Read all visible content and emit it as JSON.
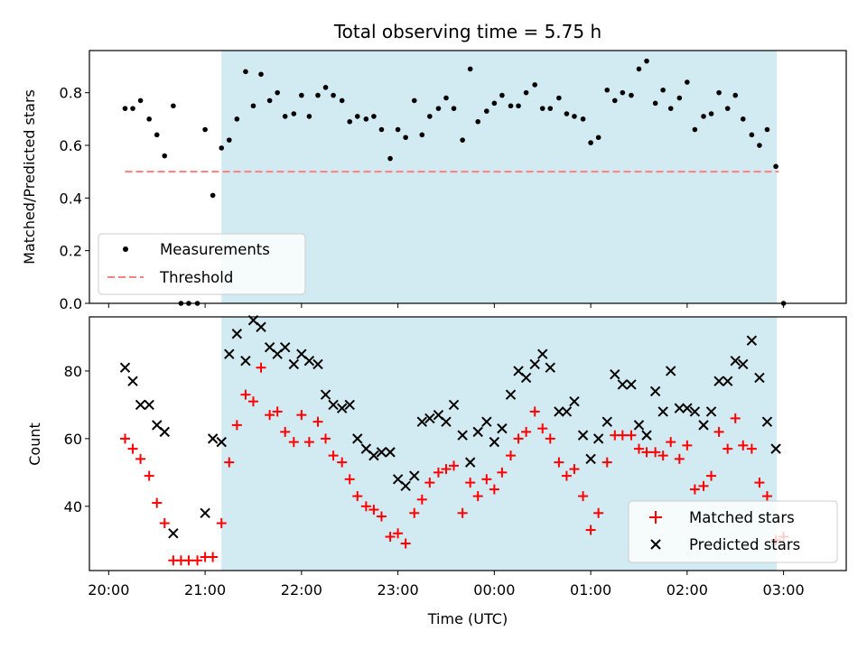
{
  "chart_data": [
    {
      "type": "scatter",
      "title": "Total observing time = 5.75 h",
      "ylabel": "Matched/Predicted stars",
      "xlabel": "",
      "ylim": [
        0,
        0.96
      ],
      "yticks": [
        "0.0",
        "0.2",
        "0.4",
        "0.6",
        "0.8"
      ],
      "xlim_hours": [
        19.8,
        27.65
      ],
      "highlight_hours": [
        21.17,
        26.93
      ],
      "highlight_color": "#add8e6",
      "legend": {
        "placement": "lower-left",
        "entries": [
          "Measurements",
          "Threshold"
        ]
      },
      "threshold": {
        "name": "Threshold",
        "value": 0.5,
        "x_hours": [
          20.17,
          26.95
        ],
        "color": "#ff7f7f"
      },
      "series": [
        {
          "name": "Measurements",
          "marker": "dot",
          "color": "#000000",
          "x_hours": [
            20.17,
            20.25,
            20.33,
            20.42,
            20.5,
            20.58,
            20.67,
            20.75,
            20.83,
            20.92,
            21.0,
            21.08,
            21.17,
            21.25,
            21.33,
            21.42,
            21.5,
            21.58,
            21.67,
            21.75,
            21.83,
            21.92,
            22.0,
            22.08,
            22.17,
            22.25,
            22.33,
            22.42,
            22.5,
            22.58,
            22.67,
            22.75,
            22.83,
            22.92,
            23.0,
            23.08,
            23.17,
            23.25,
            23.33,
            23.42,
            23.5,
            23.58,
            23.67,
            23.75,
            23.83,
            23.92,
            24.0,
            24.08,
            24.17,
            24.25,
            24.33,
            24.42,
            24.5,
            24.58,
            24.67,
            24.75,
            24.83,
            24.92,
            25.0,
            25.08,
            25.17,
            25.25,
            25.33,
            25.42,
            25.5,
            25.58,
            25.67,
            25.75,
            25.83,
            25.92,
            26.0,
            26.08,
            26.17,
            26.25,
            26.33,
            26.42,
            26.5,
            26.58,
            26.67,
            26.75,
            26.83,
            26.92,
            27.0
          ],
          "y": [
            0.74,
            0.74,
            0.77,
            0.7,
            0.64,
            0.56,
            0.75,
            0.0,
            0.0,
            0.0,
            0.66,
            0.41,
            0.59,
            0.62,
            0.7,
            0.88,
            0.75,
            0.87,
            0.77,
            0.8,
            0.71,
            0.72,
            0.79,
            0.71,
            0.79,
            0.82,
            0.79,
            0.77,
            0.69,
            0.71,
            0.7,
            0.71,
            0.66,
            0.55,
            0.66,
            0.63,
            0.77,
            0.64,
            0.71,
            0.74,
            0.78,
            0.74,
            0.62,
            0.89,
            0.69,
            0.73,
            0.76,
            0.79,
            0.75,
            0.75,
            0.8,
            0.83,
            0.74,
            0.74,
            0.78,
            0.72,
            0.71,
            0.7,
            0.61,
            0.63,
            0.81,
            0.77,
            0.8,
            0.79,
            0.89,
            0.92,
            0.76,
            0.81,
            0.74,
            0.78,
            0.84,
            0.66,
            0.71,
            0.72,
            0.8,
            0.74,
            0.79,
            0.7,
            0.64,
            0.6,
            0.66,
            0.52,
            0.0
          ]
        }
      ]
    },
    {
      "type": "scatter",
      "title": "",
      "ylabel": "Count",
      "xlabel": "Time (UTC)",
      "ylim": [
        21,
        96
      ],
      "yticks": [
        "40",
        "60",
        "80"
      ],
      "xticks": [
        "20:00",
        "21:00",
        "22:00",
        "23:00",
        "00:00",
        "01:00",
        "02:00",
        "03:00"
      ],
      "xlim_hours": [
        19.8,
        27.65
      ],
      "highlight_hours": [
        21.17,
        26.93
      ],
      "highlight_color": "#add8e6",
      "legend": {
        "placement": "lower-right",
        "entries": [
          "Matched stars",
          "Predicted stars"
        ]
      },
      "series": [
        {
          "name": "Matched stars",
          "marker": "plus",
          "color": "#ff0000",
          "x_hours": [
            20.17,
            20.25,
            20.33,
            20.42,
            20.5,
            20.58,
            20.67,
            20.75,
            20.83,
            20.92,
            21.0,
            21.08,
            21.17,
            21.25,
            21.33,
            21.42,
            21.5,
            21.58,
            21.67,
            21.75,
            21.83,
            21.92,
            22.0,
            22.08,
            22.17,
            22.25,
            22.33,
            22.42,
            22.5,
            22.58,
            22.67,
            22.75,
            22.83,
            22.92,
            23.0,
            23.08,
            23.17,
            23.25,
            23.33,
            23.42,
            23.5,
            23.58,
            23.67,
            23.75,
            23.83,
            23.92,
            24.0,
            24.08,
            24.17,
            24.25,
            24.33,
            24.42,
            24.5,
            24.58,
            24.67,
            24.75,
            24.83,
            24.92,
            25.0,
            25.08,
            25.17,
            25.25,
            25.33,
            25.42,
            25.5,
            25.58,
            25.67,
            25.75,
            25.83,
            25.92,
            26.0,
            26.08,
            26.17,
            26.25,
            26.33,
            26.42,
            26.5,
            26.58,
            26.67,
            26.75,
            26.83,
            26.92,
            27.0
          ],
          "y": [
            60,
            57,
            54,
            49,
            41,
            35,
            24,
            24,
            24,
            24,
            25,
            25,
            35,
            53,
            64,
            73,
            71,
            81,
            67,
            68,
            62,
            59,
            67,
            59,
            65,
            60,
            55,
            53,
            48,
            43,
            40,
            39,
            37,
            31,
            32,
            29,
            38,
            42,
            47,
            50,
            51,
            52,
            38,
            47,
            43,
            48,
            45,
            50,
            55,
            60,
            62,
            68,
            63,
            60,
            53,
            49,
            51,
            43,
            33,
            38,
            53,
            61,
            61,
            61,
            57,
            56,
            56,
            55,
            59,
            54,
            58,
            45,
            46,
            49,
            62,
            57,
            66,
            58,
            57,
            47,
            43,
            30,
            31
          ]
        },
        {
          "name": "Predicted stars",
          "marker": "x",
          "color": "#000000",
          "x_hours": [
            20.17,
            20.25,
            20.33,
            20.42,
            20.5,
            20.58,
            20.67,
            21.0,
            21.08,
            21.17,
            21.25,
            21.33,
            21.42,
            21.5,
            21.58,
            21.67,
            21.75,
            21.83,
            21.92,
            22.0,
            22.08,
            22.17,
            22.25,
            22.33,
            22.42,
            22.5,
            22.58,
            22.67,
            22.75,
            22.83,
            22.92,
            23.0,
            23.08,
            23.17,
            23.25,
            23.33,
            23.42,
            23.5,
            23.58,
            23.67,
            23.75,
            23.83,
            23.92,
            24.0,
            24.08,
            24.17,
            24.25,
            24.33,
            24.42,
            24.5,
            24.58,
            24.67,
            24.75,
            24.83,
            24.92,
            25.0,
            25.08,
            25.17,
            25.25,
            25.33,
            25.42,
            25.5,
            25.58,
            25.67,
            25.75,
            25.83,
            25.92,
            26.0,
            26.08,
            26.17,
            26.25,
            26.33,
            26.42,
            26.5,
            26.58,
            26.67,
            26.75,
            26.83,
            26.92
          ],
          "y": [
            81,
            77,
            70,
            70,
            64,
            62,
            32,
            38,
            60,
            59,
            85,
            91,
            83,
            95,
            93,
            87,
            85,
            87,
            82,
            85,
            83,
            82,
            73,
            70,
            69,
            70,
            60,
            57,
            55,
            56,
            56,
            48,
            46,
            49,
            65,
            66,
            67,
            65,
            70,
            61,
            53,
            62,
            65,
            59,
            63,
            73,
            80,
            78,
            82,
            85,
            81,
            68,
            68,
            71,
            61,
            54,
            60,
            65,
            79,
            76,
            76,
            64,
            61,
            74,
            68,
            80,
            69,
            69,
            68,
            64,
            68,
            77,
            77,
            83,
            82,
            89,
            78,
            65,
            57
          ]
        }
      ]
    }
  ]
}
